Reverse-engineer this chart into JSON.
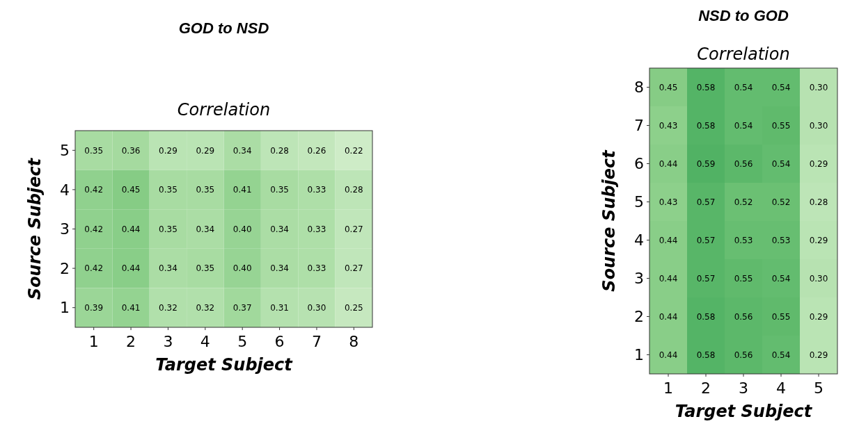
{
  "chart_data": [
    {
      "type": "heatmap",
      "title": "GOD to NSD",
      "subtitle": "Correlation",
      "xlabel": "Target Subject",
      "ylabel": "Source Subject",
      "categories": [
        "1",
        "2",
        "3",
        "4",
        "5",
        "6",
        "7",
        "8"
      ],
      "y_categories": [
        "5",
        "4",
        "3",
        "2",
        "1"
      ],
      "cells": [
        [
          0.35,
          0.36,
          0.29,
          0.29,
          0.34,
          0.28,
          0.26,
          0.22
        ],
        [
          0.42,
          0.45,
          0.35,
          0.35,
          0.41,
          0.35,
          0.33,
          0.28
        ],
        [
          0.42,
          0.44,
          0.35,
          0.34,
          0.4,
          0.34,
          0.33,
          0.27
        ],
        [
          0.42,
          0.44,
          0.34,
          0.35,
          0.4,
          0.34,
          0.33,
          0.27
        ],
        [
          0.39,
          0.41,
          0.32,
          0.32,
          0.37,
          0.31,
          0.3,
          0.25
        ]
      ],
      "cell_labels": [
        [
          "0.35",
          "0.36",
          "0.29",
          "0.29",
          "0.34",
          "0.28",
          "0.26",
          "0.22"
        ],
        [
          "0.42",
          "0.45",
          "0.35",
          "0.35",
          "0.41",
          "0.35",
          "0.33",
          "0.28"
        ],
        [
          "0.42",
          "0.44",
          "0.35",
          "0.34",
          "0.40",
          "0.34",
          "0.33",
          "0.27"
        ],
        [
          "0.42",
          "0.44",
          "0.34",
          "0.35",
          "0.40",
          "0.34",
          "0.33",
          "0.27"
        ],
        [
          "0.39",
          "0.41",
          "0.32",
          "0.32",
          "0.37",
          "0.31",
          "0.30",
          "0.25"
        ]
      ]
    },
    {
      "type": "heatmap",
      "title": "NSD to GOD",
      "subtitle": "Correlation",
      "xlabel": "Target Subject",
      "ylabel": "Source Subject",
      "categories": [
        "1",
        "2",
        "3",
        "4",
        "5"
      ],
      "y_categories": [
        "8",
        "7",
        "6",
        "5",
        "4",
        "3",
        "2",
        "1"
      ],
      "cells": [
        [
          0.45,
          0.58,
          0.54,
          0.54,
          0.3
        ],
        [
          0.43,
          0.58,
          0.54,
          0.55,
          0.3
        ],
        [
          0.44,
          0.59,
          0.56,
          0.54,
          0.29
        ],
        [
          0.43,
          0.57,
          0.52,
          0.52,
          0.28
        ],
        [
          0.44,
          0.57,
          0.53,
          0.53,
          0.29
        ],
        [
          0.44,
          0.57,
          0.55,
          0.54,
          0.3
        ],
        [
          0.44,
          0.58,
          0.56,
          0.55,
          0.29
        ],
        [
          0.44,
          0.58,
          0.56,
          0.54,
          0.29
        ]
      ],
      "cell_labels": [
        [
          "0.45",
          "0.58",
          "0.54",
          "0.54",
          "0.30"
        ],
        [
          "0.43",
          "0.58",
          "0.54",
          "0.55",
          "0.30"
        ],
        [
          "0.44",
          "0.59",
          "0.56",
          "0.54",
          "0.29"
        ],
        [
          "0.43",
          "0.57",
          "0.52",
          "0.52",
          "0.28"
        ],
        [
          "0.44",
          "0.57",
          "0.53",
          "0.53",
          "0.29"
        ],
        [
          "0.44",
          "0.57",
          "0.55",
          "0.54",
          "0.30"
        ],
        [
          "0.44",
          "0.58",
          "0.56",
          "0.55",
          "0.29"
        ],
        [
          "0.44",
          "0.58",
          "0.56",
          "0.54",
          "0.29"
        ]
      ]
    }
  ]
}
